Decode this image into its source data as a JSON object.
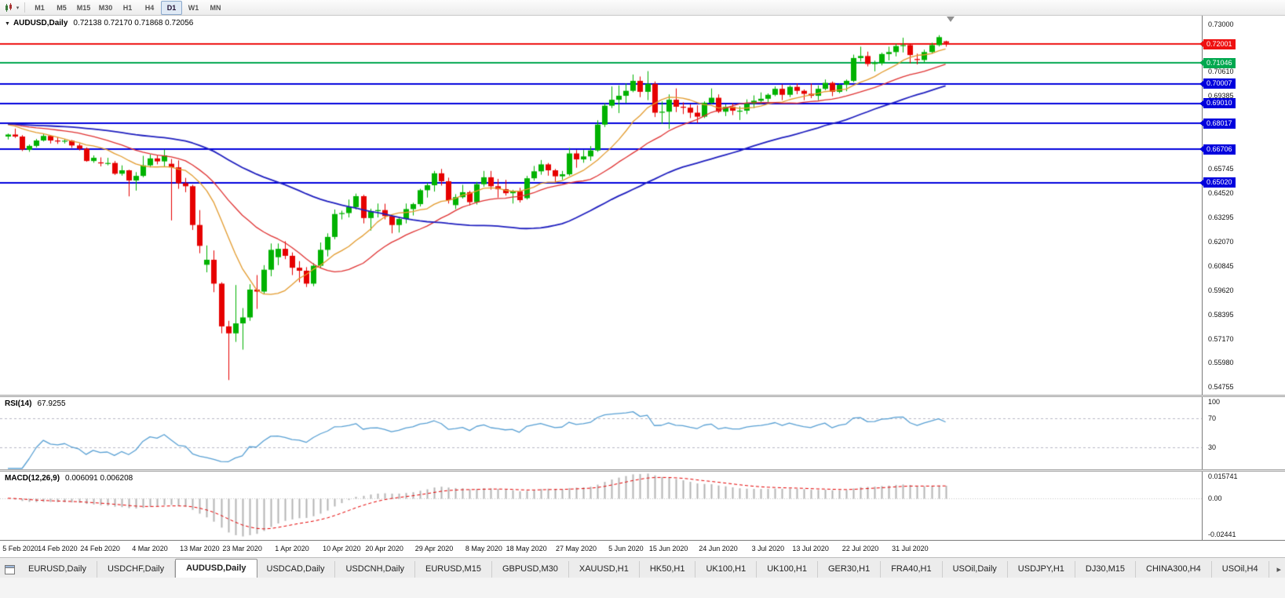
{
  "toolbar": {
    "timeframes": [
      "M1",
      "M5",
      "M15",
      "M30",
      "H1",
      "H4",
      "D1",
      "W1",
      "MN"
    ],
    "active_timeframe": "D1"
  },
  "main_panel": {
    "collapse_icon": "▼",
    "symbol": "AUDUSD,Daily",
    "ohlc": "0.72138 0.72170 0.71868 0.72056",
    "price_ticks": [
      "0.73000",
      "0.70610",
      "0.69385",
      "0.65745",
      "0.64520",
      "0.63295",
      "0.62070",
      "0.60845",
      "0.59620",
      "0.58395",
      "0.57170",
      "0.55980",
      "0.54755"
    ]
  },
  "rsi_panel": {
    "label": "RSI(14)",
    "value": "67.9255",
    "ticks": [
      "100",
      "70",
      "30"
    ]
  },
  "macd_panel": {
    "label": "MACD(12,26,9)",
    "values": "0.006091 0.006208",
    "ticks": [
      "0.015741",
      "0.00",
      "-0.02441"
    ]
  },
  "icons": {
    "tab_scroll_right": "▸"
  },
  "tabs": {
    "items": [
      "EURUSD,Daily",
      "USDCHF,Daily",
      "AUDUSD,Daily",
      "USDCAD,Daily",
      "USDCNH,Daily",
      "EURUSD,M15",
      "GBPUSD,M30",
      "XAUUSD,H1",
      "HK50,H1",
      "UK100,H1",
      "UK100,H1",
      "GER30,H1",
      "FRA40,H1",
      "USOil,Daily",
      "USDJPY,H1",
      "DJ30,M15",
      "CHINA300,H4",
      "USOil,H4"
    ],
    "active": "AUDUSD,Daily"
  },
  "chart_data": {
    "type": "candlestick",
    "symbol": "AUDUSD",
    "timeframe": "Daily",
    "last_ohlc": {
      "open": 0.72138,
      "high": 0.7217,
      "low": 0.71868,
      "close": 0.72056
    },
    "y_range": [
      0.544,
      0.7335
    ],
    "colors": {
      "up": "#00b200",
      "down": "#e60000",
      "rsi_line": "#58a0d4",
      "macd_hist": "#b4b4b4",
      "macd_signal": "#e60000"
    },
    "horizontal_lines": [
      {
        "price": 0.72001,
        "label": "0.72001",
        "color": "#ee1111"
      },
      {
        "price": 0.71046,
        "label": "0.71046",
        "color": "#00a84f"
      },
      {
        "price": 0.70007,
        "label": "0.70007",
        "color": "#0000dd"
      },
      {
        "price": 0.6901,
        "label": "0.69010",
        "color": "#0000dd"
      },
      {
        "price": 0.68017,
        "label": "0.68017",
        "color": "#0000dd"
      },
      {
        "price": 0.66706,
        "label": "0.66706",
        "color": "#0000dd"
      },
      {
        "price": 0.6502,
        "label": "0.65020",
        "color": "#0000dd"
      }
    ],
    "moving_averages": [
      {
        "period": 10,
        "color": "#e39b2d",
        "width": 1.3
      },
      {
        "period": 21,
        "color": "#e03232",
        "width": 1.3
      },
      {
        "period": 50,
        "color": "#1f1fbf",
        "width": 1.8
      }
    ],
    "indicators": {
      "rsi": {
        "period": 14,
        "levels": [
          70,
          30
        ],
        "last": 67.9255
      },
      "macd": {
        "fast": 12,
        "slow": 26,
        "signal": 9,
        "last": 0.006091,
        "signal_last": 0.006208,
        "scale_max": 0.015741,
        "scale_min": -0.02441
      }
    },
    "x_ticks": [
      {
        "label": "5 Feb 2020",
        "bar": 0
      },
      {
        "label": "14 Feb 2020",
        "bar": 7
      },
      {
        "label": "24 Feb 2020",
        "bar": 13
      },
      {
        "label": "4 Mar 2020",
        "bar": 20
      },
      {
        "label": "13 Mar 2020",
        "bar": 27
      },
      {
        "label": "23 Mar 2020",
        "bar": 33
      },
      {
        "label": "1 Apr 2020",
        "bar": 40
      },
      {
        "label": "10 Apr 2020",
        "bar": 47
      },
      {
        "label": "20 Apr 2020",
        "bar": 53
      },
      {
        "label": "29 Apr 2020",
        "bar": 60
      },
      {
        "label": "8 May 2020",
        "bar": 67
      },
      {
        "label": "18 May 2020",
        "bar": 73
      },
      {
        "label": "27 May 2020",
        "bar": 80
      },
      {
        "label": "5 Jun 2020",
        "bar": 87
      },
      {
        "label": "15 Jun 2020",
        "bar": 93
      },
      {
        "label": "24 Jun 2020",
        "bar": 100
      },
      {
        "label": "3 Jul 2020",
        "bar": 107
      },
      {
        "label": "13 Jul 2020",
        "bar": 113
      },
      {
        "label": "22 Jul 2020",
        "bar": 120
      },
      {
        "label": "31 Jul 2020",
        "bar": 127
      }
    ],
    "ohlc": [
      [
        0.6735,
        0.675,
        0.672,
        0.6745
      ],
      [
        0.6745,
        0.6775,
        0.6728,
        0.6735
      ],
      [
        0.6735,
        0.6742,
        0.6662,
        0.667
      ],
      [
        0.6668,
        0.6695,
        0.6658,
        0.6688
      ],
      [
        0.6688,
        0.6723,
        0.668,
        0.6715
      ],
      [
        0.6715,
        0.6748,
        0.671,
        0.6738
      ],
      [
        0.6738,
        0.6742,
        0.67,
        0.6715
      ],
      [
        0.6715,
        0.6732,
        0.6698,
        0.671
      ],
      [
        0.671,
        0.6722,
        0.67,
        0.6714
      ],
      [
        0.6714,
        0.6718,
        0.6678,
        0.669
      ],
      [
        0.669,
        0.67,
        0.6665,
        0.6674
      ],
      [
        0.6674,
        0.668,
        0.6608,
        0.6612
      ],
      [
        0.6612,
        0.664,
        0.6603,
        0.6628
      ],
      [
        0.6605,
        0.663,
        0.6585,
        0.66
      ],
      [
        0.66,
        0.6628,
        0.659,
        0.6602
      ],
      [
        0.6602,
        0.6612,
        0.6542,
        0.6548
      ],
      [
        0.6548,
        0.659,
        0.6538,
        0.6565
      ],
      [
        0.6565,
        0.6568,
        0.6434,
        0.6514
      ],
      [
        0.6514,
        0.6556,
        0.6463,
        0.6537
      ],
      [
        0.6537,
        0.6638,
        0.653,
        0.659
      ],
      [
        0.659,
        0.6645,
        0.658,
        0.6625
      ],
      [
        0.6625,
        0.664,
        0.6595,
        0.661
      ],
      [
        0.661,
        0.667,
        0.6585,
        0.664
      ],
      [
        0.6598,
        0.6622,
        0.6313,
        0.658
      ],
      [
        0.658,
        0.6615,
        0.6472,
        0.65
      ],
      [
        0.65,
        0.6527,
        0.6455,
        0.6485
      ],
      [
        0.6485,
        0.6492,
        0.6265,
        0.629
      ],
      [
        0.629,
        0.6365,
        0.6148,
        0.6185
      ],
      [
        0.609,
        0.6187,
        0.6052,
        0.6115
      ],
      [
        0.6115,
        0.6162,
        0.5952,
        0.5995
      ],
      [
        0.5995,
        0.6002,
        0.5745,
        0.578
      ],
      [
        0.578,
        0.5808,
        0.551,
        0.5745
      ],
      [
        0.5745,
        0.5988,
        0.5702,
        0.5795
      ],
      [
        0.5795,
        0.5872,
        0.5663,
        0.5825
      ],
      [
        0.5825,
        0.5992,
        0.5808,
        0.5965
      ],
      [
        0.5965,
        0.6038,
        0.5868,
        0.5955
      ],
      [
        0.5955,
        0.6088,
        0.5942,
        0.6065
      ],
      [
        0.6065,
        0.6197,
        0.6032,
        0.6165
      ],
      [
        0.6128,
        0.6197,
        0.6088,
        0.617
      ],
      [
        0.617,
        0.6208,
        0.6118,
        0.6135
      ],
      [
        0.6135,
        0.6152,
        0.6038,
        0.6075
      ],
      [
        0.6075,
        0.6108,
        0.6002,
        0.606
      ],
      [
        0.606,
        0.6078,
        0.5978,
        0.5995
      ],
      [
        0.5995,
        0.6098,
        0.5982,
        0.6085
      ],
      [
        0.6085,
        0.6202,
        0.6072,
        0.6165
      ],
      [
        0.6165,
        0.6248,
        0.6132,
        0.623
      ],
      [
        0.623,
        0.6368,
        0.6218,
        0.6345
      ],
      [
        0.6345,
        0.6362,
        0.6318,
        0.635
      ],
      [
        0.635,
        0.6418,
        0.6328,
        0.638
      ],
      [
        0.638,
        0.6448,
        0.6368,
        0.6435
      ],
      [
        0.6435,
        0.6442,
        0.6298,
        0.6325
      ],
      [
        0.6325,
        0.6372,
        0.6262,
        0.636
      ],
      [
        0.636,
        0.6398,
        0.6328,
        0.6365
      ],
      [
        0.6365,
        0.6397,
        0.6318,
        0.6335
      ],
      [
        0.6335,
        0.6342,
        0.6248,
        0.629
      ],
      [
        0.629,
        0.6332,
        0.6252,
        0.632
      ],
      [
        0.632,
        0.6398,
        0.6298,
        0.637
      ],
      [
        0.637,
        0.6402,
        0.6338,
        0.6395
      ],
      [
        0.6395,
        0.6472,
        0.6383,
        0.6465
      ],
      [
        0.6465,
        0.6502,
        0.6428,
        0.649
      ],
      [
        0.649,
        0.6562,
        0.6458,
        0.655
      ],
      [
        0.655,
        0.6572,
        0.6488,
        0.651
      ],
      [
        0.651,
        0.6528,
        0.6398,
        0.6415
      ],
      [
        0.639,
        0.6445,
        0.637,
        0.643
      ],
      [
        0.643,
        0.6492,
        0.6423,
        0.6455
      ],
      [
        0.6455,
        0.6462,
        0.6388,
        0.6405
      ],
      [
        0.6405,
        0.6507,
        0.6393,
        0.6495
      ],
      [
        0.6495,
        0.6562,
        0.6483,
        0.653
      ],
      [
        0.653,
        0.6562,
        0.6468,
        0.6485
      ],
      [
        0.6485,
        0.6522,
        0.6428,
        0.647
      ],
      [
        0.647,
        0.6517,
        0.6438,
        0.645
      ],
      [
        0.645,
        0.6467,
        0.6398,
        0.646
      ],
      [
        0.646,
        0.6477,
        0.6403,
        0.6415
      ],
      [
        0.6425,
        0.6537,
        0.6418,
        0.6525
      ],
      [
        0.6525,
        0.6587,
        0.6513,
        0.656
      ],
      [
        0.656,
        0.6617,
        0.6543,
        0.6595
      ],
      [
        0.6595,
        0.6602,
        0.6538,
        0.6565
      ],
      [
        0.6565,
        0.6572,
        0.6503,
        0.6535
      ],
      [
        0.6535,
        0.6562,
        0.6518,
        0.6545
      ],
      [
        0.6545,
        0.6677,
        0.6538,
        0.665
      ],
      [
        0.665,
        0.6667,
        0.6578,
        0.662
      ],
      [
        0.662,
        0.6667,
        0.6603,
        0.6635
      ],
      [
        0.6635,
        0.6687,
        0.6613,
        0.6665
      ],
      [
        0.6665,
        0.6817,
        0.6658,
        0.6795
      ],
      [
        0.6795,
        0.6902,
        0.6783,
        0.689
      ],
      [
        0.689,
        0.6987,
        0.6878,
        0.692
      ],
      [
        0.692,
        0.6992,
        0.6853,
        0.694
      ],
      [
        0.694,
        0.7002,
        0.6903,
        0.6965
      ],
      [
        0.6965,
        0.7047,
        0.6958,
        0.7015
      ],
      [
        0.7015,
        0.7037,
        0.6933,
        0.696
      ],
      [
        0.696,
        0.7064,
        0.6918,
        0.7
      ],
      [
        0.7,
        0.7012,
        0.6833,
        0.6855
      ],
      [
        0.6855,
        0.6912,
        0.6798,
        0.686
      ],
      [
        0.686,
        0.6947,
        0.6773,
        0.692
      ],
      [
        0.692,
        0.6977,
        0.6858,
        0.6885
      ],
      [
        0.6885,
        0.6907,
        0.6848,
        0.688
      ],
      [
        0.688,
        0.6897,
        0.6828,
        0.6855
      ],
      [
        0.6855,
        0.6892,
        0.6803,
        0.6835
      ],
      [
        0.6835,
        0.6912,
        0.6828,
        0.6905
      ],
      [
        0.6905,
        0.6977,
        0.6898,
        0.693
      ],
      [
        0.693,
        0.6947,
        0.6853,
        0.686
      ],
      [
        0.686,
        0.6897,
        0.6838,
        0.6885
      ],
      [
        0.6885,
        0.6902,
        0.6843,
        0.6865
      ],
      [
        0.6865,
        0.6887,
        0.6818,
        0.6865
      ],
      [
        0.6865,
        0.6922,
        0.6848,
        0.69
      ],
      [
        0.69,
        0.6942,
        0.6878,
        0.6915
      ],
      [
        0.6915,
        0.6957,
        0.6898,
        0.6925
      ],
      [
        0.6925,
        0.6952,
        0.6908,
        0.6945
      ],
      [
        0.6945,
        0.6987,
        0.6938,
        0.6975
      ],
      [
        0.6975,
        0.6997,
        0.6918,
        0.6945
      ],
      [
        0.6945,
        0.6992,
        0.6933,
        0.6985
      ],
      [
        0.6985,
        0.7002,
        0.6948,
        0.6965
      ],
      [
        0.6965,
        0.6972,
        0.6918,
        0.695
      ],
      [
        0.695,
        0.7002,
        0.6928,
        0.694
      ],
      [
        0.694,
        0.6992,
        0.6918,
        0.6975
      ],
      [
        0.6975,
        0.7022,
        0.6968,
        0.7005
      ],
      [
        0.7005,
        0.7012,
        0.6938,
        0.696
      ],
      [
        0.696,
        0.7002,
        0.6953,
        0.6995
      ],
      [
        0.6995,
        0.7022,
        0.6963,
        0.7015
      ],
      [
        0.7015,
        0.7147,
        0.7008,
        0.713
      ],
      [
        0.713,
        0.7187,
        0.7113,
        0.714
      ],
      [
        0.714,
        0.7162,
        0.7088,
        0.71
      ],
      [
        0.71,
        0.7117,
        0.7063,
        0.7105
      ],
      [
        0.7105,
        0.7157,
        0.7093,
        0.715
      ],
      [
        0.715,
        0.7187,
        0.7118,
        0.716
      ],
      [
        0.716,
        0.7202,
        0.7138,
        0.719
      ],
      [
        0.719,
        0.7232,
        0.7158,
        0.7195
      ],
      [
        0.7195,
        0.7202,
        0.7103,
        0.7145
      ],
      [
        0.7125,
        0.7152,
        0.7098,
        0.712
      ],
      [
        0.712,
        0.7172,
        0.7108,
        0.716
      ],
      [
        0.716,
        0.7207,
        0.7153,
        0.7195
      ],
      [
        0.7195,
        0.7245,
        0.7188,
        0.7235
      ],
      [
        0.72138,
        0.7217,
        0.71868,
        0.72056
      ]
    ]
  }
}
